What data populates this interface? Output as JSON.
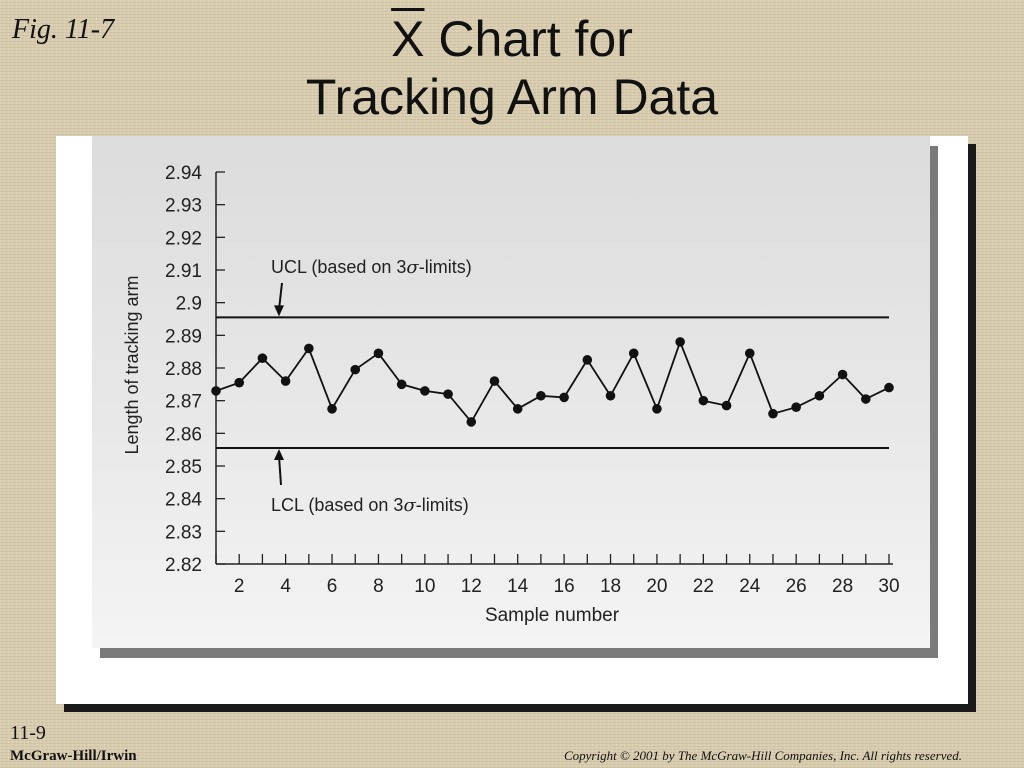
{
  "slide": {
    "fig_label": "Fig. 11-7",
    "title_symbol": "X",
    "title_line1_rest": " Chart for",
    "title_line2": "Tracking Arm Data",
    "slide_number": "11-9",
    "publisher": "McGraw-Hill/Irwin",
    "copyright": "Copyright © 2001 by The McGraw-Hill Companies, Inc.  All rights reserved."
  },
  "chart_data": {
    "type": "line",
    "xlabel": "Sample number",
    "ylabel": "Length of tracking arm",
    "xlim": [
      1,
      30
    ],
    "ylim": [
      2.82,
      2.94
    ],
    "yticks": [
      2.94,
      2.93,
      2.92,
      2.91,
      2.9,
      2.89,
      2.88,
      2.87,
      2.86,
      2.85,
      2.84,
      2.83,
      2.82
    ],
    "ytick_labels": [
      "2.94",
      "2.93",
      "2.92",
      "2.91",
      "2.9",
      "2.89",
      "2.88",
      "2.87",
      "2.86",
      "2.85",
      "2.84",
      "2.83",
      "2.82"
    ],
    "xtick_labels": [
      "2",
      "4",
      "6",
      "8",
      "10",
      "12",
      "14",
      "16",
      "18",
      "20",
      "22",
      "24",
      "26",
      "28",
      "30"
    ],
    "x": [
      1,
      2,
      3,
      4,
      5,
      6,
      7,
      8,
      9,
      10,
      11,
      12,
      13,
      14,
      15,
      16,
      17,
      18,
      19,
      20,
      21,
      22,
      23,
      24,
      25,
      26,
      27,
      28,
      29,
      30
    ],
    "values": [
      2.873,
      2.8755,
      2.883,
      2.876,
      2.886,
      2.8675,
      2.8795,
      2.8845,
      2.875,
      2.873,
      2.872,
      2.8635,
      2.876,
      2.8675,
      2.8715,
      2.871,
      2.8825,
      2.8715,
      2.8845,
      2.8675,
      2.888,
      2.87,
      2.8685,
      2.8845,
      2.866,
      2.868,
      2.8715,
      2.878,
      2.8705,
      2.874
    ],
    "control_limits": {
      "ucl": 2.8955,
      "lcl": 2.8555
    },
    "annotations": {
      "ucl_prefix": "UCL (based on 3",
      "lcl_prefix": "LCL (based on 3",
      "sigma": "σ",
      "suffix": "-limits)"
    },
    "grid": false
  }
}
